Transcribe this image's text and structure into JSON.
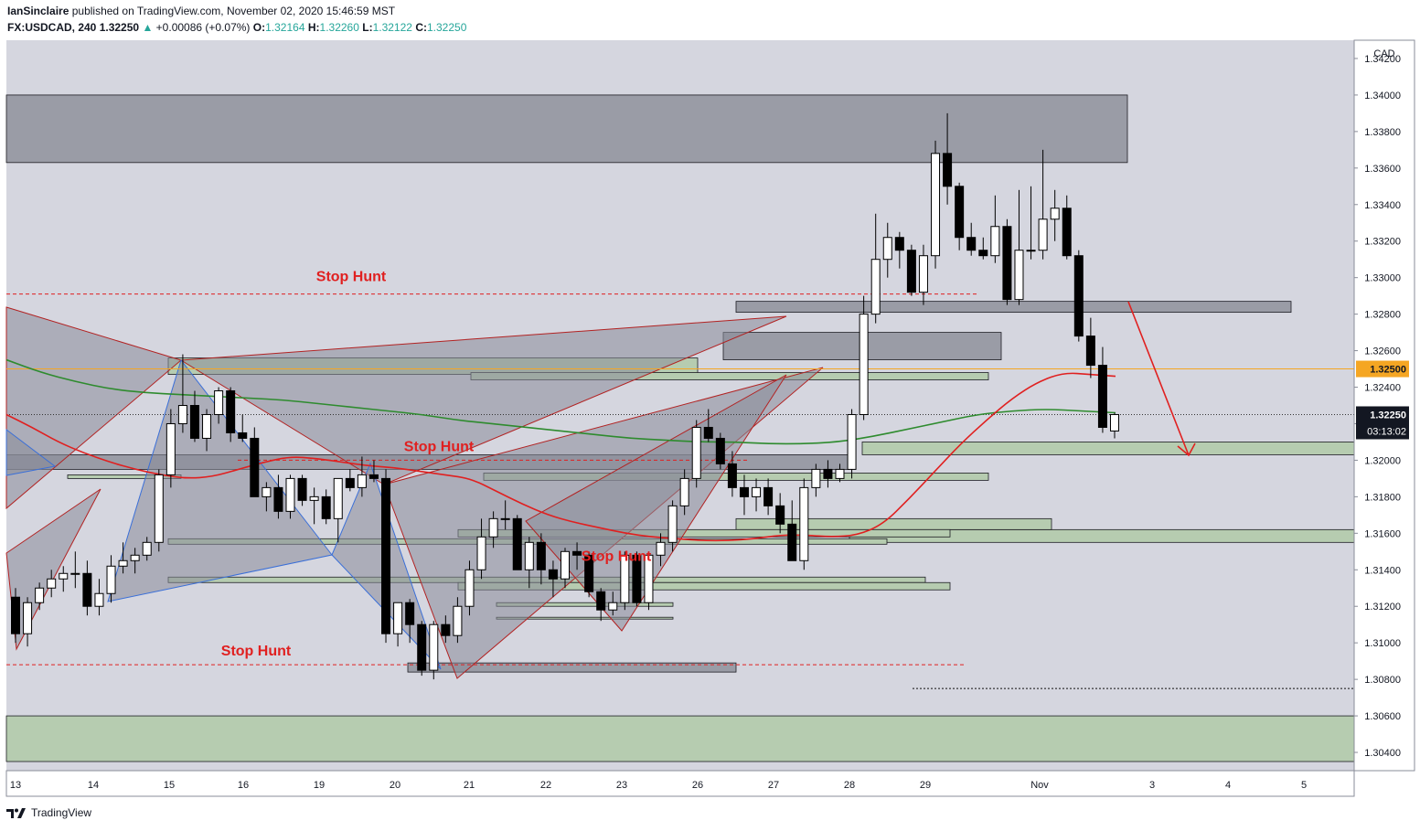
{
  "header": {
    "author": "IanSinclaire",
    "published_text": "published on TradingView.com, November 02, 2020 15:46:59 MST",
    "symbol": "FX:USDCAD, 240",
    "last": "1.32250",
    "change": "+0.00086 (+0.07%)",
    "open_label": "O:",
    "open": "1.32164",
    "high_label": "H:",
    "high": "1.32260",
    "low_label": "L:",
    "low": "1.32122",
    "close_label": "C:",
    "close": "1.32250"
  },
  "footer": {
    "brand": "TradingView",
    "icon": "tradingview-logo-icon"
  },
  "colors": {
    "plot_bg": "#d5d6df",
    "gray_zone": "#9a9ca6",
    "green_zone": "#b6ccb0",
    "red": "#e02020",
    "green_ma": "#2e8b2e",
    "orange": "#f5a623",
    "pattern_fill": "#8a8c99",
    "blue_line": "#3a6fd8"
  },
  "chart_data": {
    "type": "candlestick",
    "currency": "CAD",
    "ylim": [
      1.303,
      1.343
    ],
    "y_ticks": [
      "1.34200",
      "1.34000",
      "1.33800",
      "1.33600",
      "1.33400",
      "1.33200",
      "1.33000",
      "1.32800",
      "1.32600",
      "1.32400",
      "1.32200",
      "1.32000",
      "1.31800",
      "1.31600",
      "1.31400",
      "1.31200",
      "1.31000",
      "1.30800",
      "1.30600",
      "1.30400"
    ],
    "x_ticks": [
      "13",
      "14",
      "15",
      "16",
      "19",
      "20",
      "21",
      "22",
      "23",
      "26",
      "27",
      "28",
      "29",
      "Nov",
      "3",
      "4",
      "5"
    ],
    "price_labels": [
      {
        "value": 1.325,
        "text": "1.32500",
        "color": "#f5a623"
      },
      {
        "value": 1.3225,
        "text": "1.32250",
        "color": "#131722"
      }
    ],
    "countdown": "03:13:02",
    "annotations": [
      "Stop Hunt",
      "Stop Hunt",
      "Stop Hunt",
      "Stop Hunt"
    ],
    "candles": [
      [
        1.3125,
        1.313,
        1.31,
        1.3105
      ],
      [
        1.3105,
        1.3125,
        1.3098,
        1.3122
      ],
      [
        1.3122,
        1.3133,
        1.3118,
        1.313
      ],
      [
        1.313,
        1.314,
        1.3125,
        1.3135
      ],
      [
        1.3135,
        1.3142,
        1.3128,
        1.3138
      ],
      [
        1.3138,
        1.315,
        1.313,
        1.3138
      ],
      [
        1.3138,
        1.3145,
        1.3115,
        1.312
      ],
      [
        1.312,
        1.3135,
        1.3115,
        1.3127
      ],
      [
        1.3127,
        1.3148,
        1.3122,
        1.3142
      ],
      [
        1.3142,
        1.3155,
        1.3138,
        1.3145
      ],
      [
        1.3145,
        1.3152,
        1.3138,
        1.3148
      ],
      [
        1.3148,
        1.3158,
        1.3145,
        1.3155
      ],
      [
        1.3155,
        1.3195,
        1.315,
        1.3192
      ],
      [
        1.3192,
        1.3228,
        1.3185,
        1.322
      ],
      [
        1.322,
        1.3258,
        1.3215,
        1.323
      ],
      [
        1.323,
        1.3238,
        1.321,
        1.3212
      ],
      [
        1.3212,
        1.3228,
        1.3205,
        1.3225
      ],
      [
        1.3225,
        1.324,
        1.322,
        1.3238
      ],
      [
        1.3238,
        1.324,
        1.321,
        1.3215
      ],
      [
        1.3215,
        1.3225,
        1.321,
        1.3212
      ],
      [
        1.3212,
        1.3218,
        1.318,
        1.318
      ],
      [
        1.318,
        1.3188,
        1.3172,
        1.3185
      ],
      [
        1.3185,
        1.3192,
        1.3168,
        1.3172
      ],
      [
        1.3172,
        1.3192,
        1.3168,
        1.319
      ],
      [
        1.319,
        1.3192,
        1.3175,
        1.3178
      ],
      [
        1.3178,
        1.3185,
        1.3165,
        1.318
      ],
      [
        1.318,
        1.3184,
        1.3165,
        1.3168
      ],
      [
        1.3168,
        1.319,
        1.3155,
        1.319
      ],
      [
        1.319,
        1.3195,
        1.3183,
        1.3185
      ],
      [
        1.3185,
        1.3202,
        1.318,
        1.3192
      ],
      [
        1.3192,
        1.32,
        1.3188,
        1.319
      ],
      [
        1.319,
        1.3195,
        1.31,
        1.3105
      ],
      [
        1.3105,
        1.3122,
        1.3098,
        1.3122
      ],
      [
        1.3122,
        1.3124,
        1.31,
        1.311
      ],
      [
        1.311,
        1.3112,
        1.3082,
        1.3085
      ],
      [
        1.3085,
        1.3112,
        1.308,
        1.311
      ],
      [
        1.311,
        1.3115,
        1.31,
        1.3104
      ],
      [
        1.3104,
        1.3125,
        1.31,
        1.312
      ],
      [
        1.312,
        1.3145,
        1.3115,
        1.314
      ],
      [
        1.314,
        1.3168,
        1.3135,
        1.3158
      ],
      [
        1.3158,
        1.3172,
        1.3152,
        1.3168
      ],
      [
        1.3168,
        1.3178,
        1.3162,
        1.3168
      ],
      [
        1.3168,
        1.317,
        1.314,
        1.314
      ],
      [
        1.314,
        1.3158,
        1.313,
        1.3155
      ],
      [
        1.3155,
        1.316,
        1.3132,
        1.314
      ],
      [
        1.314,
        1.3145,
        1.3125,
        1.3135
      ],
      [
        1.3135,
        1.3152,
        1.313,
        1.315
      ],
      [
        1.315,
        1.3155,
        1.314,
        1.3148
      ],
      [
        1.3148,
        1.315,
        1.3125,
        1.3128
      ],
      [
        1.3128,
        1.313,
        1.3112,
        1.3118
      ],
      [
        1.3118,
        1.3128,
        1.3115,
        1.3122
      ],
      [
        1.3122,
        1.315,
        1.3118,
        1.3148
      ],
      [
        1.3148,
        1.315,
        1.312,
        1.3122
      ],
      [
        1.3122,
        1.315,
        1.3118,
        1.3148
      ],
      [
        1.3148,
        1.316,
        1.3142,
        1.3155
      ],
      [
        1.3155,
        1.3178,
        1.315,
        1.3175
      ],
      [
        1.3175,
        1.3195,
        1.317,
        1.319
      ],
      [
        1.319,
        1.3222,
        1.3185,
        1.3218
      ],
      [
        1.3218,
        1.3228,
        1.321,
        1.3212
      ],
      [
        1.3212,
        1.3215,
        1.3195,
        1.3198
      ],
      [
        1.3198,
        1.3205,
        1.318,
        1.3185
      ],
      [
        1.3185,
        1.3192,
        1.317,
        1.318
      ],
      [
        1.318,
        1.319,
        1.3172,
        1.3185
      ],
      [
        1.3185,
        1.319,
        1.317,
        1.3175
      ],
      [
        1.3175,
        1.3182,
        1.316,
        1.3165
      ],
      [
        1.3165,
        1.3178,
        1.3145,
        1.3145
      ],
      [
        1.3145,
        1.319,
        1.314,
        1.3185
      ],
      [
        1.3185,
        1.3198,
        1.318,
        1.3195
      ],
      [
        1.3195,
        1.32,
        1.3185,
        1.319
      ],
      [
        1.319,
        1.3198,
        1.3188,
        1.3195
      ],
      [
        1.3195,
        1.3228,
        1.319,
        1.3225
      ],
      [
        1.3225,
        1.329,
        1.3222,
        1.328
      ],
      [
        1.328,
        1.3335,
        1.3275,
        1.331
      ],
      [
        1.331,
        1.333,
        1.33,
        1.3322
      ],
      [
        1.3322,
        1.3325,
        1.3305,
        1.3315
      ],
      [
        1.3315,
        1.3318,
        1.329,
        1.3292
      ],
      [
        1.3292,
        1.3318,
        1.3285,
        1.3312
      ],
      [
        1.3312,
        1.3375,
        1.3305,
        1.3368
      ],
      [
        1.3368,
        1.339,
        1.334,
        1.335
      ],
      [
        1.335,
        1.3352,
        1.3315,
        1.3322
      ],
      [
        1.3322,
        1.333,
        1.3312,
        1.3315
      ],
      [
        1.3315,
        1.3322,
        1.331,
        1.3312
      ],
      [
        1.3312,
        1.3345,
        1.3308,
        1.3328
      ],
      [
        1.3328,
        1.3332,
        1.3285,
        1.3288
      ],
      [
        1.3288,
        1.3348,
        1.3285,
        1.3315
      ],
      [
        1.3315,
        1.335,
        1.331,
        1.3315
      ],
      [
        1.3315,
        1.337,
        1.331,
        1.3332
      ],
      [
        1.3332,
        1.3348,
        1.332,
        1.3338
      ],
      [
        1.3338,
        1.3345,
        1.331,
        1.3312
      ],
      [
        1.3312,
        1.3315,
        1.3265,
        1.3268
      ],
      [
        1.3268,
        1.3278,
        1.3245,
        1.3252
      ],
      [
        1.3252,
        1.3262,
        1.3215,
        1.3218
      ],
      [
        1.3216,
        1.3226,
        1.3212,
        1.3225
      ]
    ],
    "moving_averages": [
      {
        "color": "#e02020",
        "values": [
          1.3225,
          1.3218,
          1.321,
          1.3204,
          1.3199,
          1.3195,
          1.3192,
          1.319,
          1.3191,
          1.3195,
          1.3199,
          1.3202,
          1.3201,
          1.3199,
          1.3197,
          1.3196,
          1.3194,
          1.3192,
          1.319,
          1.3183,
          1.3176,
          1.317,
          1.3166,
          1.3163,
          1.316,
          1.3158,
          1.3157,
          1.3156,
          1.3156,
          1.3157,
          1.3159,
          1.3159,
          1.3158,
          1.3159,
          1.3165,
          1.3179,
          1.3194,
          1.3209,
          1.3222,
          1.3234,
          1.3243,
          1.3248,
          1.3247,
          1.3246
        ]
      },
      {
        "color": "#2e8b2e",
        "values": [
          1.3255,
          1.3248,
          1.3243,
          1.3239,
          1.3237,
          1.3236,
          1.3235,
          1.3234,
          1.3233,
          1.3231,
          1.3229,
          1.3227,
          1.3225,
          1.3222,
          1.322,
          1.3218,
          1.3216,
          1.3214,
          1.3212,
          1.3211,
          1.321,
          1.321,
          1.3209,
          1.3209,
          1.321,
          1.3213,
          1.3217,
          1.3221,
          1.3225,
          1.3227,
          1.3228,
          1.3227,
          1.3226
        ]
      }
    ]
  }
}
